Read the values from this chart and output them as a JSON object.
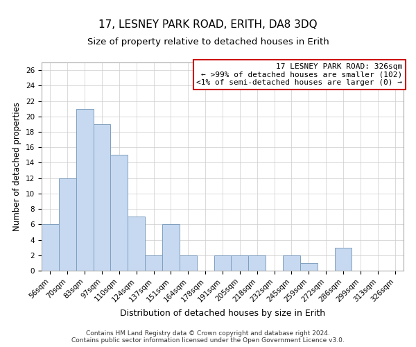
{
  "title": "17, LESNEY PARK ROAD, ERITH, DA8 3DQ",
  "subtitle": "Size of property relative to detached houses in Erith",
  "xlabel": "Distribution of detached houses by size in Erith",
  "ylabel": "Number of detached properties",
  "bar_labels": [
    "56sqm",
    "70sqm",
    "83sqm",
    "97sqm",
    "110sqm",
    "124sqm",
    "137sqm",
    "151sqm",
    "164sqm",
    "178sqm",
    "191sqm",
    "205sqm",
    "218sqm",
    "232sqm",
    "245sqm",
    "259sqm",
    "272sqm",
    "286sqm",
    "299sqm",
    "313sqm",
    "326sqm"
  ],
  "bar_values": [
    6,
    12,
    21,
    19,
    15,
    7,
    2,
    6,
    2,
    0,
    2,
    2,
    2,
    0,
    2,
    1,
    0,
    3,
    0,
    0,
    0
  ],
  "bar_color": "#c6d9f0",
  "bar_edge_color": "#7f9fbf",
  "ylim": [
    0,
    27
  ],
  "yticks": [
    0,
    2,
    4,
    6,
    8,
    10,
    12,
    14,
    16,
    18,
    20,
    22,
    24,
    26
  ],
  "annotation_box_edge_color": "#cc0000",
  "annotation_lines": [
    "17 LESNEY PARK ROAD: 326sqm",
    "← >99% of detached houses are smaller (102)",
    "<1% of semi-detached houses are larger (0) →"
  ],
  "footer_lines": [
    "Contains HM Land Registry data © Crown copyright and database right 2024.",
    "Contains public sector information licensed under the Open Government Licence v3.0."
  ],
  "title_fontsize": 11,
  "subtitle_fontsize": 9.5,
  "xlabel_fontsize": 9,
  "ylabel_fontsize": 8.5,
  "tick_fontsize": 7.5,
  "annotation_fontsize": 8,
  "footer_fontsize": 6.5
}
